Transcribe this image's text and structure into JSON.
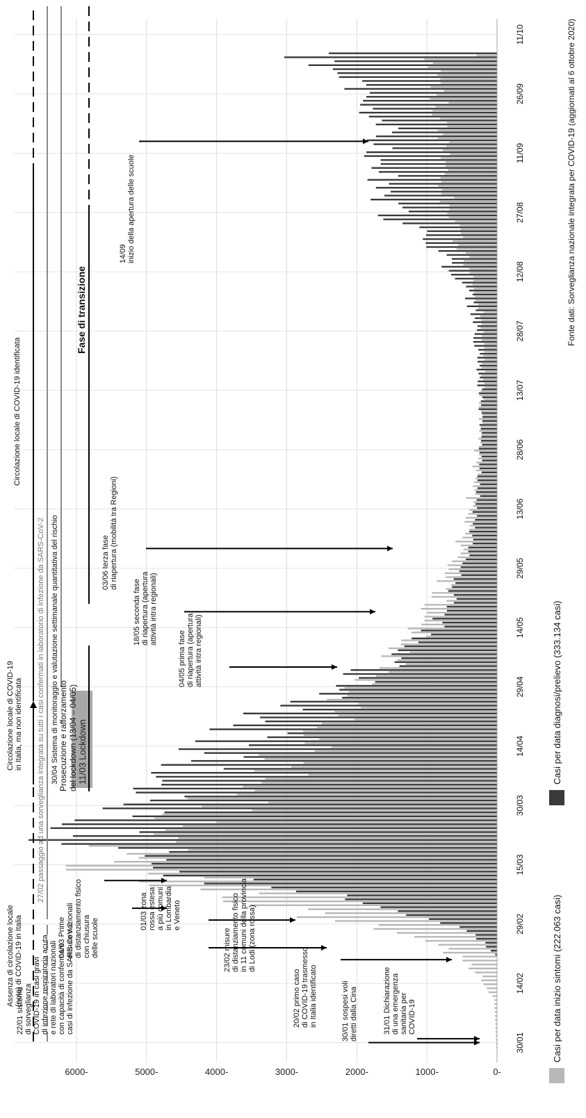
{
  "chart_data": {
    "type": "bar",
    "ylim": [
      0,
      6000
    ],
    "yticks": [
      {
        "value": 0,
        "label": "0-"
      },
      {
        "value": 1000,
        "label": "1000-"
      },
      {
        "value": 2000,
        "label": "2000-"
      },
      {
        "value": 3000,
        "label": "3000-"
      },
      {
        "value": 4000,
        "label": "4000-"
      },
      {
        "value": 5000,
        "label": "5000-"
      },
      {
        "value": 6000,
        "label": "6000-"
      }
    ],
    "xrange": [
      "2020-01-25",
      "2020-10-15"
    ],
    "xticks": [
      {
        "date": "2020-01-30",
        "label": "30/01"
      },
      {
        "date": "2020-02-14",
        "label": "14/02"
      },
      {
        "date": "2020-02-29",
        "label": "29/02"
      },
      {
        "date": "2020-03-15",
        "label": "15/03"
      },
      {
        "date": "2020-03-30",
        "label": "30/03"
      },
      {
        "date": "2020-04-14",
        "label": "14/04"
      },
      {
        "date": "2020-04-29",
        "label": "29/04"
      },
      {
        "date": "2020-05-14",
        "label": "14/05"
      },
      {
        "date": "2020-05-29",
        "label": "29/05"
      },
      {
        "date": "2020-06-13",
        "label": "13/06"
      },
      {
        "date": "2020-06-28",
        "label": "28/06"
      },
      {
        "date": "2020-07-13",
        "label": "13/07"
      },
      {
        "date": "2020-07-28",
        "label": "28/07"
      },
      {
        "date": "2020-08-12",
        "label": "12/08"
      },
      {
        "date": "2020-08-27",
        "label": "27/08"
      },
      {
        "date": "2020-09-11",
        "label": "11/09"
      },
      {
        "date": "2020-09-26",
        "label": "26/09"
      },
      {
        "date": "2020-10-11",
        "label": "11/10"
      }
    ],
    "grid": true,
    "legend_position": "bottom",
    "series": [
      {
        "name": "Casi per data inizio sintomi (222.063 casi)",
        "color": "#b8b8b8",
        "knots": [
          [
            "2020-01-25",
            0
          ],
          [
            "2020-02-10",
            40
          ],
          [
            "2020-02-15",
            200
          ],
          [
            "2020-02-20",
            450
          ],
          [
            "2020-02-25",
            1000
          ],
          [
            "2020-03-01",
            2200
          ],
          [
            "2020-03-05",
            3200
          ],
          [
            "2020-03-08",
            4000
          ],
          [
            "2020-03-11",
            4700
          ],
          [
            "2020-03-13",
            5100
          ],
          [
            "2020-03-16",
            5500
          ],
          [
            "2020-03-19",
            5200
          ],
          [
            "2020-03-23",
            4700
          ],
          [
            "2020-03-28",
            4100
          ],
          [
            "2020-04-04",
            3500
          ],
          [
            "2020-04-12",
            2900
          ],
          [
            "2020-04-20",
            2400
          ],
          [
            "2020-04-28",
            2000
          ],
          [
            "2020-05-06",
            1500
          ],
          [
            "2020-05-15",
            1050
          ],
          [
            "2020-05-25",
            750
          ],
          [
            "2020-06-05",
            520
          ],
          [
            "2020-06-20",
            330
          ],
          [
            "2020-07-05",
            240
          ],
          [
            "2020-07-20",
            190
          ],
          [
            "2020-08-01",
            220
          ],
          [
            "2020-08-10",
            330
          ],
          [
            "2020-08-20",
            550
          ],
          [
            "2020-08-27",
            700
          ],
          [
            "2020-09-05",
            720
          ],
          [
            "2020-09-15",
            760
          ],
          [
            "2020-09-25",
            820
          ],
          [
            "2020-10-02",
            950
          ],
          [
            "2020-10-05",
            1050
          ],
          [
            "2020-10-06",
            300
          ]
        ]
      },
      {
        "name": "Casi per data diagnosi/prelievo (333.134 casi)",
        "color": "#3a3a3a",
        "knots": [
          [
            "2020-01-25",
            0
          ],
          [
            "2020-02-20",
            0
          ],
          [
            "2020-02-21",
            30
          ],
          [
            "2020-02-24",
            200
          ],
          [
            "2020-02-27",
            450
          ],
          [
            "2020-03-01",
            900
          ],
          [
            "2020-03-04",
            1700
          ],
          [
            "2020-03-07",
            2500
          ],
          [
            "2020-03-10",
            3600
          ],
          [
            "2020-03-13",
            4300
          ],
          [
            "2020-03-16",
            4900
          ],
          [
            "2020-03-20",
            5900
          ],
          [
            "2020-03-23",
            5700
          ],
          [
            "2020-03-26",
            5300
          ],
          [
            "2020-03-30",
            5000
          ],
          [
            "2020-04-03",
            4700
          ],
          [
            "2020-04-08",
            4200
          ],
          [
            "2020-04-13",
            4000
          ],
          [
            "2020-04-18",
            3500
          ],
          [
            "2020-04-22",
            3100
          ],
          [
            "2020-04-27",
            2400
          ],
          [
            "2020-05-03",
            1800
          ],
          [
            "2020-05-08",
            1200
          ],
          [
            "2020-05-15",
            850
          ],
          [
            "2020-05-22",
            650
          ],
          [
            "2020-05-30",
            480
          ],
          [
            "2020-06-10",
            330
          ],
          [
            "2020-06-20",
            260
          ],
          [
            "2020-07-01",
            210
          ],
          [
            "2020-07-15",
            250
          ],
          [
            "2020-07-28",
            300
          ],
          [
            "2020-08-08",
            450
          ],
          [
            "2020-08-18",
            900
          ],
          [
            "2020-08-26",
            1450
          ],
          [
            "2020-09-05",
            1650
          ],
          [
            "2020-09-15",
            1600
          ],
          [
            "2020-09-25",
            1900
          ],
          [
            "2020-10-03",
            2450
          ],
          [
            "2020-10-06",
            2700
          ]
        ]
      }
    ]
  },
  "annotations": {
    "top": [
      "Assenza di circolazione locale\n(nota) di COVID-19 in Italia",
      "Circolazione locale di COVID-19\nin Italia, ma non identificata",
      "Circolazione locale di COVID-19 identificata",
      "27/02 passaggio ad una sorveglianza integrata su tutti i casi confermati in laboratorio di infezione da SARS-CoV-2",
      "30/04 Sistema di monitoraggio e valutazione settimanale quantitativa del rischio",
      "Fase di transizione",
      "11/03 Lockdown",
      "Prosecuzione e rafforzamento\ndel lockdown (13/04 – 04/05)"
    ],
    "events": [
      "22/01 sistema\ndi sorveglianza\nCOVID-19 in casi gravi\ndi infezione respiratoria acuta\ne rete di laboratori nazionali\ncon capacità di confermare\ncasi di infezione da SARS-CoV-2",
      "04/03 Prime\nmisure nazionali\ndi distanziamento fisico\ncon chiusura\ndelle scuole",
      "01/03 zona\nrossa estesa\na più comuni\nin Lombardia\ne Veneto",
      "23/02 misure\ndi distanziamento fisico\nin 11 comuni della provincia\ndi Lodi (zona rossa)",
      "20/02 primo caso\ndi COVID-19 trasmesso\nin Italia identificato",
      "30/01 sospesi voli\ndiretti dalla Cina",
      "31/01 Dichiarazione\ndi una emergenza\nsanitaria per\nCOVID-19",
      "04/05 prima fase\ndi riapertura (apertura\nattività intra regionali)",
      "18/05 seconda fase\ndi riapertura (apertura\nattività intra regionali)",
      "03/06 terza fase\ndi riapertura (mobilità tra Regioni)",
      "14/09\ninizio della apertura delle scuole"
    ],
    "source": "Fonte dati: Sorveglianza nazionale integrata per COVID-19 (aggiornati al 6 ottobre 2020)"
  }
}
